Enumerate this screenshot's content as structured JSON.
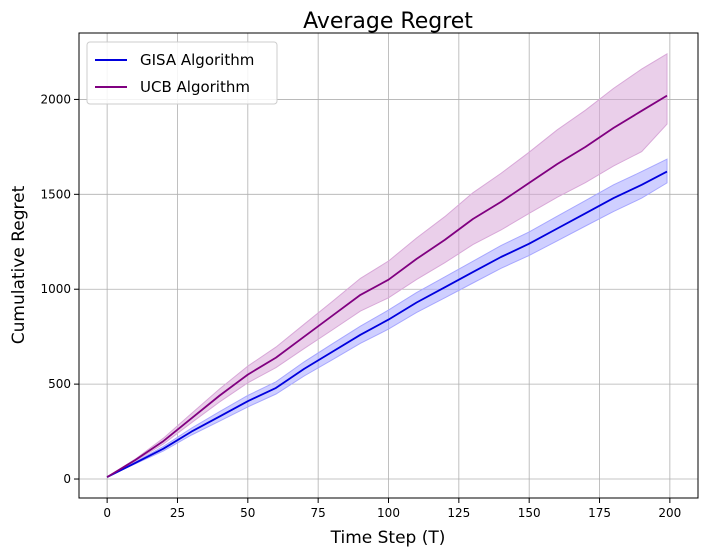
{
  "chart_data": {
    "type": "line",
    "title": "Average Regret",
    "xlabel": "Time Step (T)",
    "ylabel": "Cumulative Regret",
    "xlim": [
      -10,
      210
    ],
    "ylim": [
      -100,
      2350
    ],
    "xticks": [
      0,
      25,
      50,
      75,
      100,
      125,
      150,
      175,
      200
    ],
    "yticks": [
      0,
      500,
      1000,
      1500,
      2000
    ],
    "grid": true,
    "legend_position": "top-left",
    "series": [
      {
        "name": "GISA Algorithm",
        "color": "#0000dd",
        "band_color": "#a7a7ff",
        "x": [
          0,
          10,
          20,
          30,
          40,
          50,
          60,
          70,
          80,
          90,
          100,
          110,
          120,
          130,
          140,
          150,
          160,
          170,
          180,
          190,
          199
        ],
        "y": [
          10,
          85,
          160,
          250,
          330,
          410,
          480,
          580,
          670,
          760,
          840,
          930,
          1010,
          1090,
          1170,
          1240,
          1320,
          1400,
          1480,
          1550,
          1620
        ],
        "lower": [
          10,
          80,
          148,
          232,
          305,
          380,
          448,
          543,
          628,
          715,
          790,
          878,
          955,
          1033,
          1110,
          1178,
          1255,
          1333,
          1410,
          1480,
          1560
        ],
        "upper": [
          10,
          90,
          172,
          268,
          355,
          440,
          512,
          617,
          712,
          805,
          890,
          982,
          1065,
          1147,
          1230,
          1302,
          1385,
          1467,
          1550,
          1620,
          1685
        ]
      },
      {
        "name": "UCB Algorithm",
        "color": "#800080",
        "band_color": "#d8a8d8",
        "x": [
          0,
          10,
          20,
          30,
          40,
          50,
          60,
          70,
          80,
          90,
          100,
          110,
          120,
          130,
          140,
          150,
          160,
          170,
          180,
          190,
          199
        ],
        "y": [
          10,
          100,
          200,
          320,
          440,
          550,
          640,
          750,
          860,
          970,
          1050,
          1160,
          1260,
          1370,
          1460,
          1560,
          1660,
          1750,
          1850,
          1940,
          2020
        ],
        "lower": [
          10,
          95,
          185,
          297,
          407,
          507,
          587,
          687,
          785,
          885,
          955,
          1052,
          1140,
          1235,
          1312,
          1400,
          1485,
          1562,
          1650,
          1725,
          1870
        ],
        "upper": [
          10,
          105,
          215,
          345,
          475,
          595,
          695,
          815,
          935,
          1057,
          1148,
          1270,
          1382,
          1508,
          1610,
          1722,
          1840,
          1943,
          2058,
          2160,
          2240
        ]
      }
    ]
  }
}
